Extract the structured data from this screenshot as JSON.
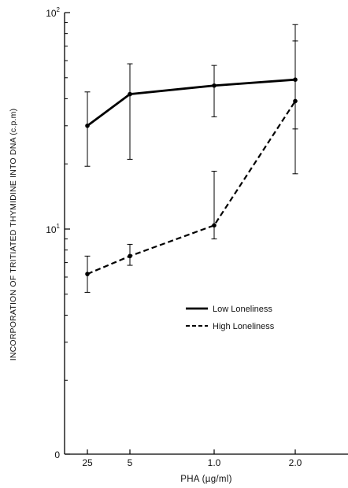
{
  "chart_data": {
    "type": "line",
    "title": "",
    "xlabel": "PHA (µg/ml)",
    "ylabel": "INCORPORATION OF TRITIATED THYMIDINE INTO DNA (c.p.m)",
    "y_scale": "log",
    "ylim": [
      0,
      100
    ],
    "categories": [
      "25",
      "5",
      "1.0",
      "2.0"
    ],
    "y_ticks": [
      {
        "value": 100,
        "base": "10",
        "exp": "2"
      },
      {
        "value": 10,
        "base": "10",
        "exp": "1"
      },
      {
        "value": 0,
        "base": "0",
        "exp": ""
      }
    ],
    "legend_position": "right",
    "grid": false,
    "series": [
      {
        "name": "Low Loneliness",
        "style": "solid",
        "color": "#000000",
        "values": [
          30,
          42,
          46,
          49
        ],
        "err_low": [
          19.5,
          21,
          33,
          29
        ],
        "err_high": [
          43,
          58,
          57,
          88
        ]
      },
      {
        "name": "High Loneliness",
        "style": "dashed",
        "color": "#000000",
        "values": [
          6.2,
          7.5,
          10.4,
          39
        ],
        "err_low": [
          5.1,
          6.8,
          9,
          18
        ],
        "err_high": [
          7.5,
          8.5,
          18.5,
          74
        ]
      }
    ]
  }
}
